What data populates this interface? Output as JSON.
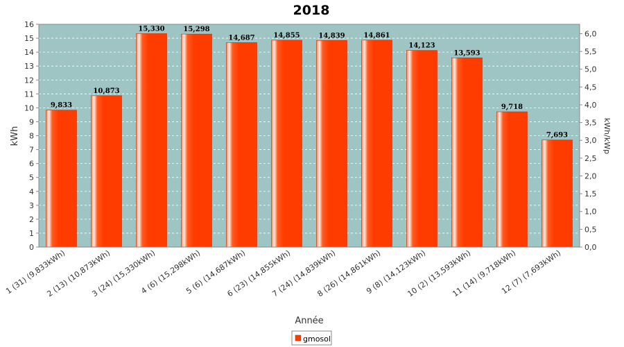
{
  "chart_data": {
    "type": "bar",
    "title": "2018",
    "xlabel": "Année",
    "ylabel": "kWh",
    "y2label": "kWh/kWp",
    "categories": [
      "1 (31)  (9,833kWh)",
      "2 (13)  (10,873kWh)",
      "3 (24)  (15,330kWh)",
      "4 (6)  (15,298kWh)",
      "5 (6)  (14,687kWh)",
      "6 (23)  (14,855kWh)",
      "7 (24)  (14,839kWh)",
      "8 (26)  (14,861kWh)",
      "9 (8)  (14,123kWh)",
      "10 (2)  (13,593kWh)",
      "11 (14)  (9,718kWh)",
      "12 (7)  (7,693kWh)"
    ],
    "series": [
      {
        "name": "gmosol",
        "values": [
          9.833,
          10.873,
          15.33,
          15.298,
          14.687,
          14.855,
          14.839,
          14.861,
          14.123,
          13.593,
          9.718,
          7.693
        ],
        "labels": [
          "9,833",
          "10,873",
          "15,330",
          "15,298",
          "14,687",
          "14,855",
          "14,839",
          "14,861",
          "14,123",
          "13,593",
          "9,718",
          "7,693"
        ]
      }
    ],
    "ylim": [
      0,
      16
    ],
    "yticks": [
      "0",
      "1",
      "2",
      "3",
      "4",
      "5",
      "6",
      "7",
      "8",
      "9",
      "10",
      "11",
      "12",
      "13",
      "14",
      "15",
      "16"
    ],
    "y2lim": [
      0,
      6.263
    ],
    "y2ticks": [
      {
        "value": 0,
        "label": "0,0"
      },
      {
        "value": 0.5,
        "label": "0,5"
      },
      {
        "value": 1.0,
        "label": "1,0"
      },
      {
        "value": 1.5,
        "label": "1,5"
      },
      {
        "value": 2.0,
        "label": "2,0"
      },
      {
        "value": 2.5,
        "label": "2,5"
      },
      {
        "value": 3.0,
        "label": "3,0"
      },
      {
        "value": 3.5,
        "label": "3,5"
      },
      {
        "value": 4.0,
        "label": "4,0"
      },
      {
        "value": 4.5,
        "label": "4,5"
      },
      {
        "value": 5.0,
        "label": "5,0"
      },
      {
        "value": 5.5,
        "label": "5,5"
      },
      {
        "value": 6.0,
        "label": "6,0"
      }
    ],
    "grid": true,
    "legend": "bottom-center",
    "colors": {
      "bar": "#ff3c00",
      "bar_highlight": "#ffe0d0",
      "bar_edge": "#cc3000",
      "plot_bg": "#9ec4c4",
      "grid": "#ffffff"
    }
  }
}
